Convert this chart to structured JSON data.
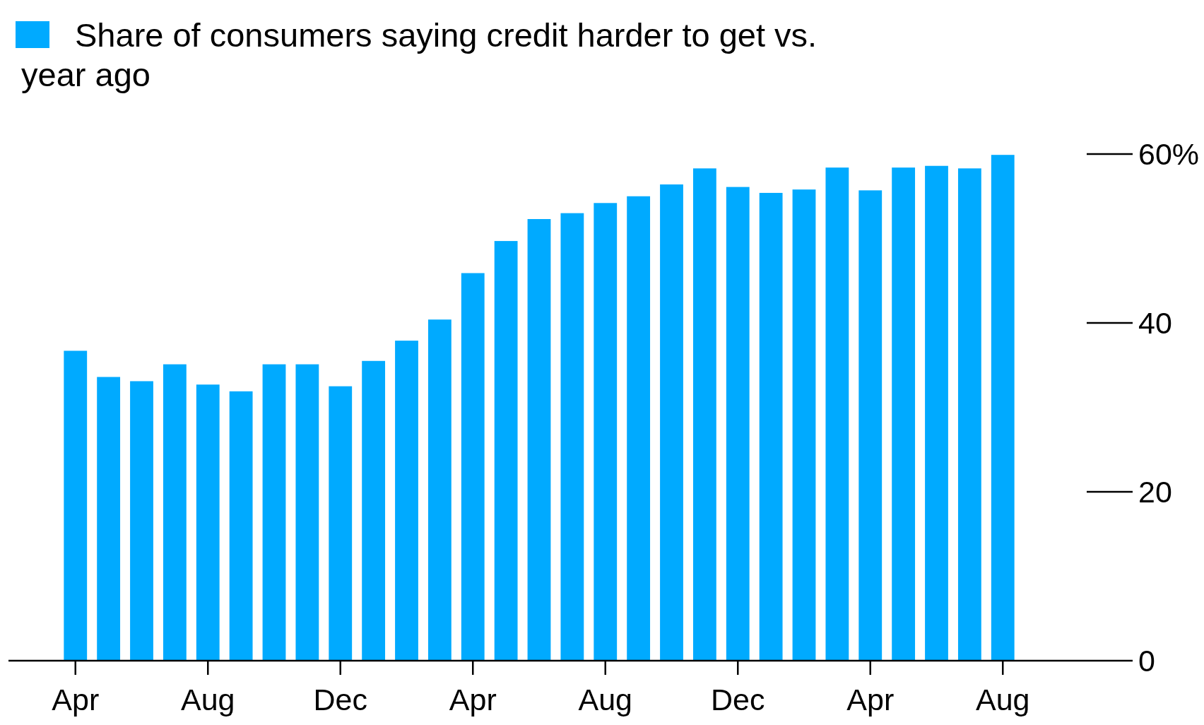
{
  "chart_data": {
    "type": "bar",
    "categories": [
      "Apr",
      null,
      null,
      null,
      "Aug",
      null,
      null,
      null,
      "Dec",
      null,
      null,
      null,
      "Apr",
      null,
      null,
      null,
      "Aug",
      null,
      null,
      null,
      "Dec",
      null,
      null,
      null,
      "Apr",
      null,
      null,
      null,
      "Aug"
    ],
    "series": [
      {
        "name": "Share of consumers saying credit harder to get vs. year ago",
        "color": "#00aaff",
        "values": [
          36.7,
          33.6,
          33.1,
          35.1,
          32.7,
          31.9,
          35.1,
          35.1,
          32.5,
          35.5,
          37.9,
          40.4,
          45.9,
          49.7,
          52.3,
          53.0,
          54.2,
          55.0,
          56.4,
          58.3,
          56.1,
          55.4,
          55.8,
          58.4,
          55.7,
          58.4,
          58.6,
          58.3,
          59.9
        ]
      }
    ],
    "ylim": [
      0,
      60
    ],
    "yticks": [
      0,
      20,
      40,
      {
        "value": 60,
        "label": "60%"
      }
    ],
    "grid": false,
    "legend": "top left"
  }
}
